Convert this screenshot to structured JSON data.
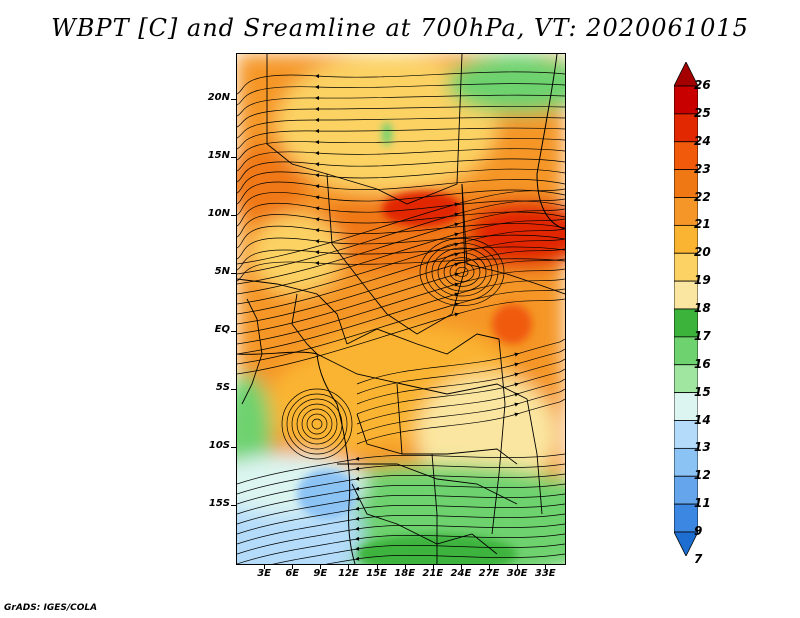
{
  "title": "WBPT [C] and Sreamline at 700hPa, VT: 2020061015",
  "credit": "GrADS: IGES/COLA",
  "map": {
    "lon_range": [
      0,
      35
    ],
    "lat_range": [
      -20,
      24
    ],
    "lat_labels": [
      "20N",
      "15N",
      "10N",
      "5N",
      "EQ",
      "5S",
      "10S",
      "15S"
    ],
    "lat_values": [
      20,
      15,
      10,
      5,
      0,
      -5,
      -10,
      -15
    ],
    "lon_labels": [
      "3E",
      "6E",
      "9E",
      "12E",
      "15E",
      "18E",
      "21E",
      "24E",
      "27E",
      "30E",
      "33E"
    ],
    "lon_values": [
      3,
      6,
      9,
      12,
      15,
      18,
      21,
      24,
      27,
      30,
      33
    ]
  },
  "colorbar": {
    "labels": [
      "26",
      "25",
      "24",
      "23",
      "22",
      "21",
      "20",
      "19",
      "18",
      "17",
      "16",
      "15",
      "14",
      "13",
      "12",
      "11",
      "9",
      "7"
    ],
    "colors": [
      "#a50000",
      "#c80000",
      "#e12800",
      "#f05a0a",
      "#f07814",
      "#f59628",
      "#fab432",
      "#fcd264",
      "#fae6a0",
      "#3cb43c",
      "#6ed26e",
      "#a0e6a0",
      "#dcf5f0",
      "#b4dcfa",
      "#8cc3f5",
      "#64a5eb",
      "#3c87e1",
      "#1e6ed2"
    ]
  }
}
